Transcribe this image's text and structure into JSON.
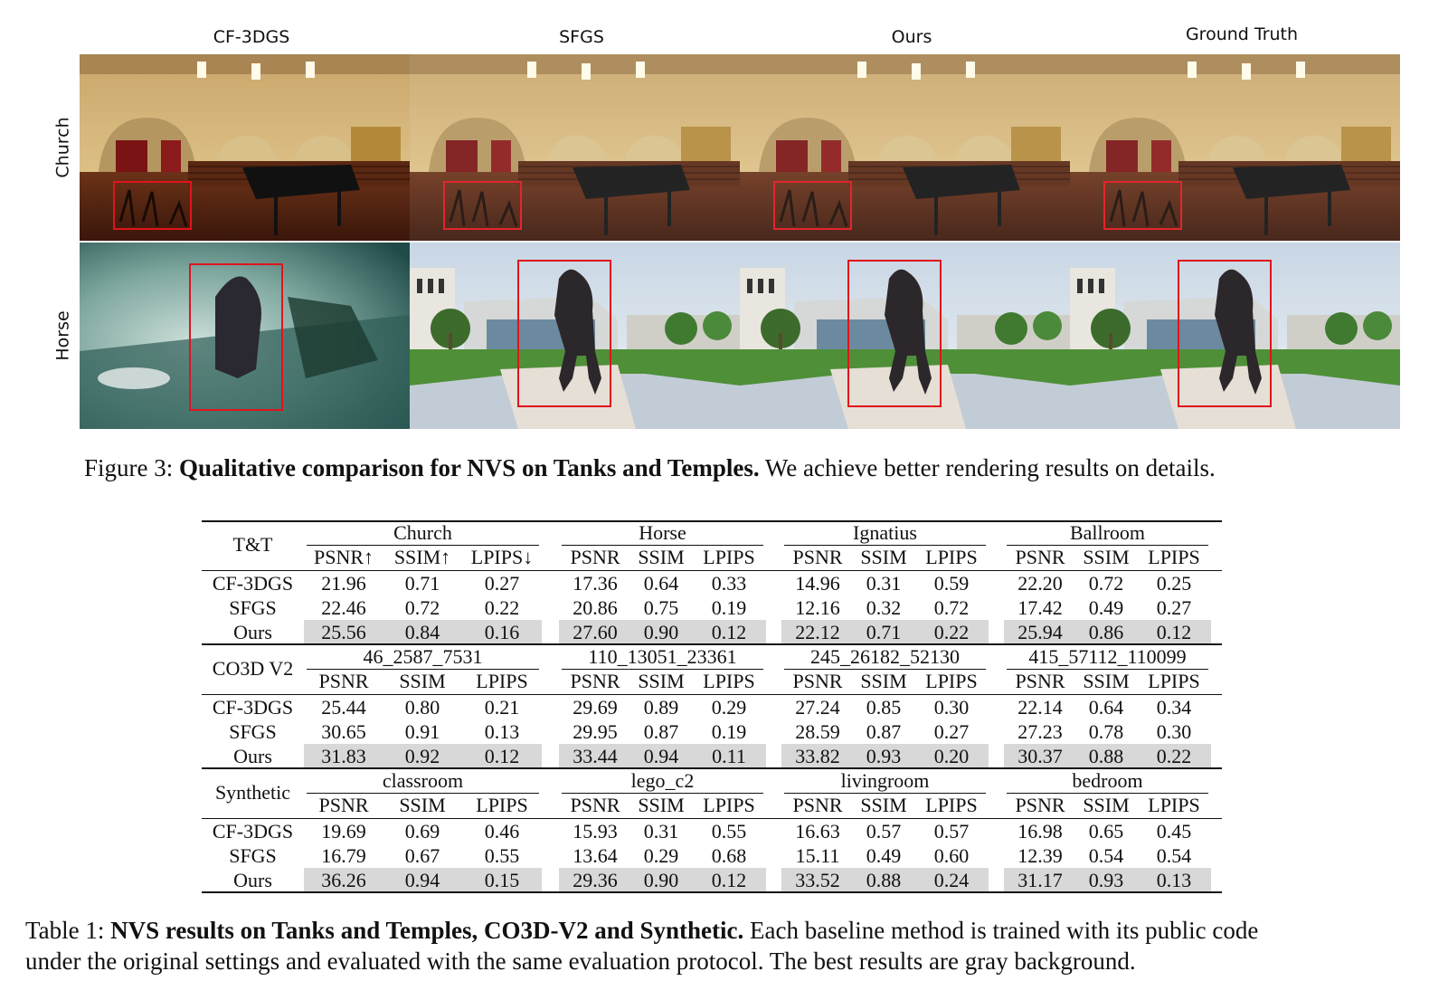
{
  "figure": {
    "columns": [
      "CF-3DGS",
      "SFGS",
      "Ours",
      "Ground Truth"
    ],
    "rows": [
      "Church",
      "Horse"
    ],
    "caption_label": "Figure 3:",
    "caption_bold": "Qualitative comparison for NVS on Tanks and Temples.",
    "caption_rest": "We achieve better rendering results on details."
  },
  "table": {
    "metric_headers_first": [
      "PSNR↑",
      "SSIM↑",
      "LPIPS↓"
    ],
    "metric_headers": [
      "PSNR",
      "SSIM",
      "LPIPS"
    ],
    "sections": [
      {
        "name": "T&T",
        "groups": [
          "Church",
          "Horse",
          "Ignatius",
          "Ballroom"
        ],
        "rows": [
          {
            "method": "CF-3DGS",
            "values": [
              "21.96",
              "0.71",
              "0.27",
              "17.36",
              "0.64",
              "0.33",
              "14.96",
              "0.31",
              "0.59",
              "22.20",
              "0.72",
              "0.25"
            ]
          },
          {
            "method": "SFGS",
            "values": [
              "22.46",
              "0.72",
              "0.22",
              "20.86",
              "0.75",
              "0.19",
              "12.16",
              "0.32",
              "0.72",
              "17.42",
              "0.49",
              "0.27"
            ]
          },
          {
            "method": "Ours",
            "values": [
              "25.56",
              "0.84",
              "0.16",
              "27.60",
              "0.90",
              "0.12",
              "22.12",
              "0.71",
              "0.22",
              "25.94",
              "0.86",
              "0.12"
            ]
          }
        ]
      },
      {
        "name": "CO3D V2",
        "groups": [
          "46_2587_7531",
          "110_13051_23361",
          "245_26182_52130",
          "415_57112_110099"
        ],
        "rows": [
          {
            "method": "CF-3DGS",
            "values": [
              "25.44",
              "0.80",
              "0.21",
              "29.69",
              "0.89",
              "0.29",
              "27.24",
              "0.85",
              "0.30",
              "22.14",
              "0.64",
              "0.34"
            ]
          },
          {
            "method": "SFGS",
            "values": [
              "30.65",
              "0.91",
              "0.13",
              "29.95",
              "0.87",
              "0.19",
              "28.59",
              "0.87",
              "0.27",
              "27.23",
              "0.78",
              "0.30"
            ]
          },
          {
            "method": "Ours",
            "values": [
              "31.83",
              "0.92",
              "0.12",
              "33.44",
              "0.94",
              "0.11",
              "33.82",
              "0.93",
              "0.20",
              "30.37",
              "0.88",
              "0.22"
            ]
          }
        ]
      },
      {
        "name": "Synthetic",
        "groups": [
          "classroom",
          "lego_c2",
          "livingroom",
          "bedroom"
        ],
        "rows": [
          {
            "method": "CF-3DGS",
            "values": [
              "19.69",
              "0.69",
              "0.46",
              "15.93",
              "0.31",
              "0.55",
              "16.63",
              "0.57",
              "0.57",
              "16.98",
              "0.65",
              "0.45"
            ]
          },
          {
            "method": "SFGS",
            "values": [
              "16.79",
              "0.67",
              "0.55",
              "13.64",
              "0.29",
              "0.68",
              "15.11",
              "0.49",
              "0.60",
              "12.39",
              "0.54",
              "0.54"
            ]
          },
          {
            "method": "Ours",
            "values": [
              "36.26",
              "0.94",
              "0.15",
              "29.36",
              "0.90",
              "0.12",
              "33.52",
              "0.88",
              "0.24",
              "31.17",
              "0.93",
              "0.13"
            ]
          }
        ]
      }
    ],
    "caption_label": "Table 1:",
    "caption_bold": "NVS results on Tanks and Temples, CO3D-V2 and Synthetic.",
    "caption_rest_line1": "Each baseline method is trained with its public code",
    "caption_rest_line2": "under the original settings and evaluated with the same evaluation protocol. The best results are gray background."
  }
}
